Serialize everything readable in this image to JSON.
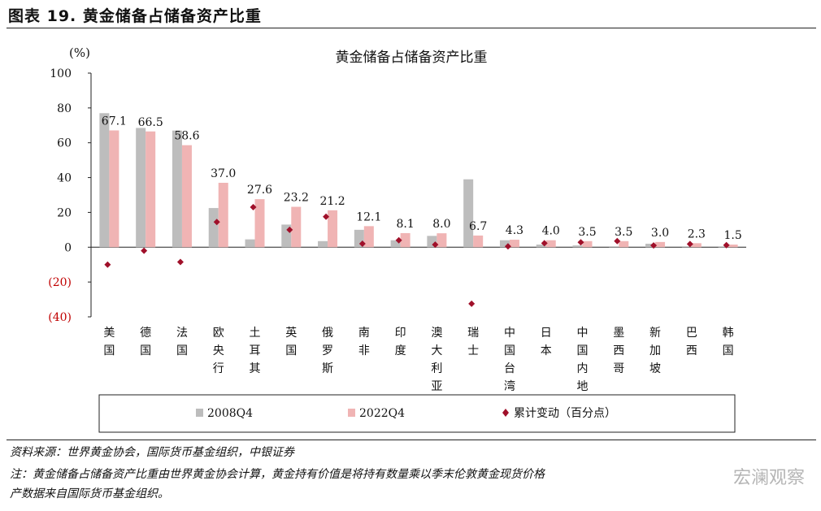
{
  "figure": {
    "label": "图表 19.  黄金储备占储备资产比重",
    "source": "资料来源：世界黄金协会，国际货币基金组织，中银证券",
    "note_line1": "注：黄金储备占储备资产比重由世界黄金协会计算，黄金持有价值是将持有数量乘以季末伦敦黄金现货价格",
    "note_line2": "产数据来自国际货币基金组织。",
    "watermark": "宏澜观察"
  },
  "chart_data": {
    "type": "bar",
    "title": "黄金储备占储备资产比重",
    "y_unit": "(%)",
    "ylim": [
      -40,
      100
    ],
    "yticks": [
      {
        "v": 100,
        "label": "100"
      },
      {
        "v": 80,
        "label": "80"
      },
      {
        "v": 60,
        "label": "60"
      },
      {
        "v": 40,
        "label": "40"
      },
      {
        "v": 20,
        "label": "20"
      },
      {
        "v": 0,
        "label": "0"
      },
      {
        "v": -20,
        "label": "(20)"
      },
      {
        "v": -40,
        "label": "(40)"
      }
    ],
    "categories": [
      "美国",
      "德国",
      "法国",
      "欧央行",
      "土耳其",
      "英国",
      "俄罗斯",
      "南非",
      "印度",
      "澳大利亚",
      "瑞士",
      "中国台湾",
      "日本",
      "中国内地",
      "墨西哥",
      "新加坡",
      "巴西",
      "韩国"
    ],
    "series": [
      {
        "name": "2008Q4",
        "type": "bar",
        "color": "#bdbdbd",
        "values": [
          77.0,
          68.5,
          67.0,
          22.5,
          4.5,
          13.0,
          3.5,
          10.0,
          4.0,
          6.5,
          39.0,
          4.0,
          1.5,
          1.0,
          0.5,
          2.0,
          0.5,
          0.2
        ]
      },
      {
        "name": "2022Q4",
        "type": "bar",
        "color": "#f0b4b4",
        "values": [
          67.1,
          66.5,
          58.6,
          37.0,
          27.6,
          23.2,
          21.2,
          12.1,
          8.1,
          8.0,
          6.7,
          4.3,
          4.0,
          3.5,
          3.5,
          3.0,
          2.3,
          1.5
        ],
        "labels": [
          "67.1",
          "66.5",
          "58.6",
          "37.0",
          "27.6",
          "23.2",
          "21.2",
          "12.1",
          "8.1",
          "8.0",
          "6.7",
          "4.3",
          "4.0",
          "3.5",
          "3.5",
          "3.0",
          "2.3",
          "1.5"
        ]
      },
      {
        "name": "累计变动（百分点）",
        "type": "marker",
        "color": "#a0102a",
        "values": [
          -10.0,
          -2.0,
          -8.5,
          14.5,
          23.0,
          10.0,
          17.5,
          2.0,
          4.0,
          1.5,
          -32.5,
          0.5,
          2.3,
          2.8,
          3.5,
          1.0,
          1.8,
          1.2
        ]
      }
    ],
    "grid": false,
    "legend": "bottom"
  }
}
